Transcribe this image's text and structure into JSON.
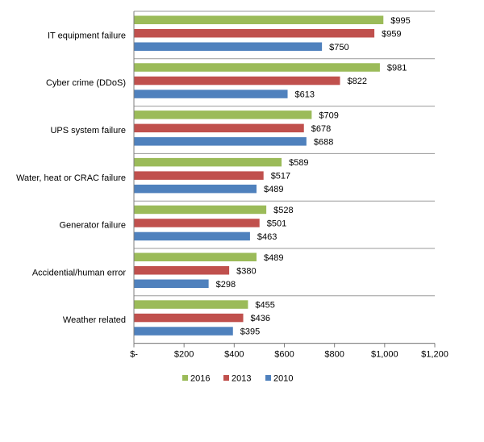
{
  "chart_data": {
    "type": "bar",
    "orientation": "horizontal",
    "title": "",
    "xlabel": "",
    "ylabel": "",
    "xlim": [
      0,
      1200
    ],
    "x_ticks": [
      0,
      200,
      400,
      600,
      800,
      1000,
      1200
    ],
    "x_tick_labels": [
      "$-",
      "$200",
      "$400",
      "$600",
      "$800",
      "$1,000",
      "$1,200"
    ],
    "grid": false,
    "legend_position": "bottom",
    "categories": [
      "IT equipment failure",
      "Cyber crime (DDoS)",
      "UPS system failure",
      "Water, heat or CRAC failure",
      "Generator failure",
      "Accidential/human error",
      "Weather related"
    ],
    "series": [
      {
        "name": "2016",
        "color": "#9BBB59",
        "values": [
          995,
          981,
          709,
          589,
          528,
          489,
          455
        ],
        "labels": [
          "$995",
          "$981",
          "$709",
          "$589",
          "$528",
          "$489",
          "$455"
        ]
      },
      {
        "name": "2013",
        "color": "#C0504D",
        "values": [
          959,
          822,
          678,
          517,
          501,
          380,
          436
        ],
        "labels": [
          "$959",
          "$822",
          "$678",
          "$517",
          "$501",
          "$380",
          "$436"
        ]
      },
      {
        "name": "2010",
        "color": "#4F81BD",
        "values": [
          750,
          613,
          688,
          489,
          463,
          298,
          395
        ],
        "labels": [
          "$750",
          "$613",
          "$688",
          "$489",
          "$463",
          "$298",
          "$395"
        ]
      }
    ]
  }
}
